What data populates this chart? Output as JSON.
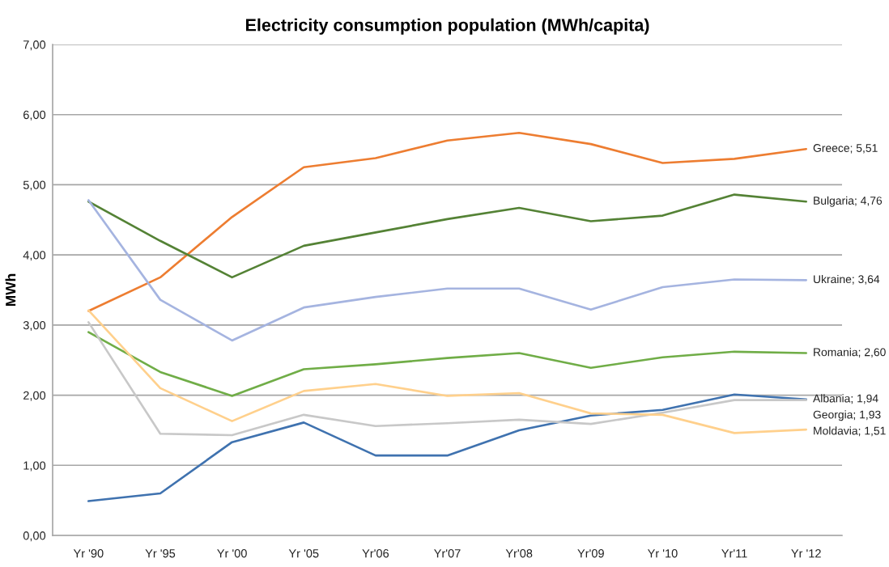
{
  "chart_data": {
    "type": "line",
    "title": "Electricity consumption population (MWh/capita)",
    "ylabel": "MWh",
    "categories": [
      "Yr '90",
      "Yr '95",
      "Yr '00",
      "Yr '05",
      "Yr'06",
      "Yr'07",
      "Yr'08",
      "Yr'09",
      "Yr '10",
      "Yr'11",
      "Yr '12"
    ],
    "series": [
      {
        "color": "#ed7d31",
        "values": [
          3.2,
          3.68,
          4.54,
          5.25,
          5.38,
          5.63,
          5.74,
          5.58,
          5.31,
          5.37,
          5.51
        ],
        "value_labels": [
          null,
          null,
          null,
          null,
          null,
          null,
          null,
          null,
          null,
          null,
          "Greece; 5,51"
        ]
      },
      {
        "color": "#548235",
        "values": [
          4.76,
          4.2,
          3.68,
          4.13,
          4.32,
          4.51,
          4.67,
          4.48,
          4.56,
          4.86,
          4.76
        ],
        "value_labels": [
          null,
          null,
          null,
          null,
          null,
          null,
          null,
          null,
          null,
          null,
          "Bulgaria; 4,76"
        ]
      },
      {
        "color": "#a5b4e0",
        "values": [
          4.78,
          3.36,
          2.78,
          3.25,
          3.4,
          3.52,
          3.52,
          3.22,
          3.54,
          3.65,
          3.64
        ],
        "value_labels": [
          null,
          null,
          null,
          null,
          null,
          null,
          null,
          null,
          null,
          null,
          "Ukraine; 3,64"
        ]
      },
      {
        "color": "#70ad47",
        "values": [
          2.9,
          2.33,
          1.99,
          2.37,
          2.44,
          2.53,
          2.6,
          2.39,
          2.54,
          2.62,
          2.6
        ],
        "value_labels": [
          null,
          null,
          null,
          null,
          null,
          null,
          null,
          null,
          null,
          null,
          "Romania; 2,60"
        ]
      },
      {
        "color": "#3f72af",
        "values": [
          0.49,
          0.6,
          1.33,
          1.61,
          1.14,
          1.14,
          1.5,
          1.71,
          1.79,
          2.01,
          1.94
        ],
        "value_labels": [
          null,
          null,
          null,
          null,
          null,
          null,
          null,
          null,
          null,
          null,
          "Albania; 1,94"
        ]
      },
      {
        "color": "#c8c8c8",
        "values": [
          3.04,
          1.45,
          1.43,
          1.72,
          1.56,
          1.6,
          1.65,
          1.59,
          1.75,
          1.93,
          1.93
        ],
        "value_labels": [
          null,
          null,
          null,
          null,
          null,
          null,
          null,
          null,
          null,
          null,
          "Georgia; 1,93"
        ]
      },
      {
        "color": "#ffd08c",
        "values": [
          3.21,
          2.1,
          1.63,
          2.06,
          2.16,
          1.99,
          2.03,
          1.74,
          1.72,
          1.46,
          1.51
        ],
        "value_labels": [
          null,
          null,
          null,
          null,
          null,
          null,
          null,
          null,
          null,
          null,
          "Moldavia; 1,51"
        ]
      }
    ],
    "ylim": [
      0,
      7
    ],
    "yticks": [
      {
        "value": 0,
        "label": "0,00"
      },
      {
        "value": 1,
        "label": "1,00"
      },
      {
        "value": 2,
        "label": "2,00"
      },
      {
        "value": 3,
        "label": "3,00"
      },
      {
        "value": 4,
        "label": "4,00"
      },
      {
        "value": 5,
        "label": "5,00"
      },
      {
        "value": 6,
        "label": "6,00"
      },
      {
        "value": 7,
        "label": "7,00"
      }
    ],
    "grid": "y",
    "line_style": "solid"
  }
}
